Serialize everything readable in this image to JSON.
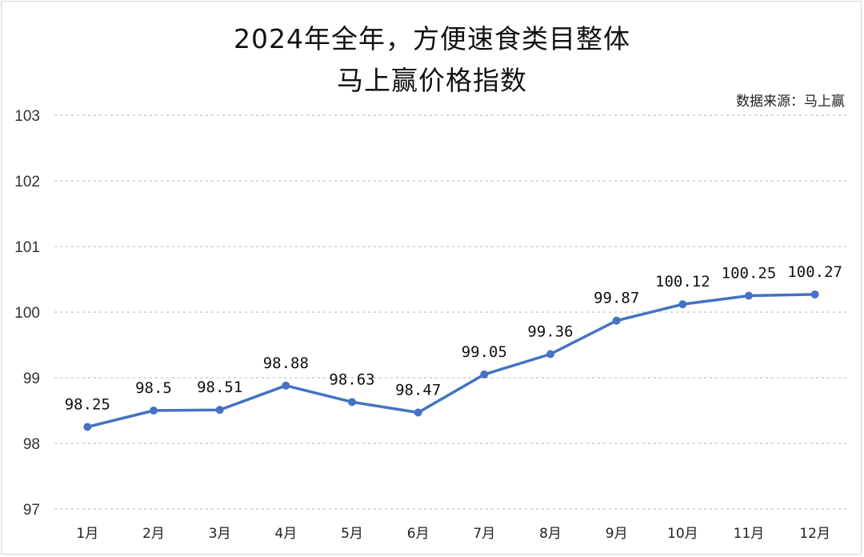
{
  "chart_data": {
    "type": "line",
    "title_line1": "2024年全年，方便速食类目整体",
    "title_line2": "马上赢价格指数",
    "source_note": "数据来源：马上赢",
    "categories": [
      "1月",
      "2月",
      "3月",
      "4月",
      "5月",
      "6月",
      "7月",
      "8月",
      "9月",
      "10月",
      "11月",
      "12月"
    ],
    "series": [
      {
        "values": [
          98.25,
          98.5,
          98.51,
          98.88,
          98.63,
          98.47,
          99.05,
          99.36,
          99.87,
          100.12,
          100.25,
          100.27
        ],
        "labels": [
          "98.25",
          "98.5",
          "98.51",
          "98.88",
          "98.63",
          "98.47",
          "99.05",
          "99.36",
          "99.87",
          "100.12",
          "100.25",
          "100.27"
        ],
        "color": "#4472c4"
      }
    ],
    "ylim": [
      97,
      103
    ],
    "yticks": [
      "97",
      "98",
      "99",
      "100",
      "101",
      "102",
      "103"
    ],
    "grid": true,
    "gridline_color": "#d9d9d9",
    "legend": "none"
  }
}
